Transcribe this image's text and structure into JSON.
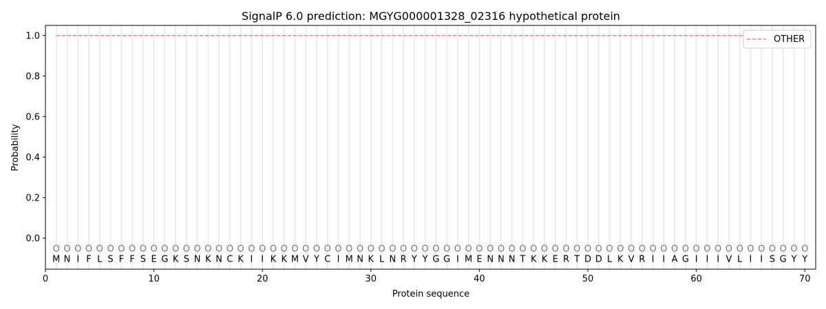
{
  "chart_data": {
    "type": "line",
    "title": "SignalP 6.0 prediction: MGYG000001328_02316 hypothetical protein",
    "xlabel": "Protein sequence",
    "ylabel": "Probability",
    "xlim": [
      0,
      71
    ],
    "ylim": [
      -0.153,
      1.05
    ],
    "xticks": [
      0,
      10,
      20,
      30,
      40,
      50,
      60,
      70
    ],
    "yticks": [
      0.0,
      0.2,
      0.4,
      0.6,
      0.8,
      1.0
    ],
    "ytick_labels": [
      "0.0",
      "0.2",
      "0.4",
      "0.6",
      "0.8",
      "1.0"
    ],
    "grid": "vertical lines at each residue",
    "legend_placement": "top-right",
    "series": [
      {
        "name": "OTHER",
        "color": "#f08080",
        "style": "dashed",
        "x_range": [
          1,
          70
        ],
        "value": 1.0
      }
    ],
    "sequence": [
      "M",
      "N",
      "I",
      "F",
      "L",
      "S",
      "F",
      "F",
      "S",
      "E",
      "G",
      "K",
      "S",
      "N",
      "K",
      "N",
      "C",
      "K",
      "I",
      "I",
      "K",
      "K",
      "M",
      "V",
      "Y",
      "C",
      "I",
      "M",
      "N",
      "K",
      "L",
      "N",
      "R",
      "Y",
      "Y",
      "G",
      "G",
      "I",
      "M",
      "E",
      "N",
      "N",
      "N",
      "T",
      "K",
      "K",
      "E",
      "R",
      "T",
      "D",
      "D",
      "L",
      "K",
      "V",
      "R",
      "I",
      "I",
      "A",
      "G",
      "I",
      "I",
      "I",
      "V",
      "L",
      "I",
      "I",
      "S",
      "G",
      "Y",
      "Y"
    ],
    "predicted_labels": "OOOOOOOOOOOOOOOOOOOOOOOOOOOOOOOOOOOOOOOOOOOOOOOOOOOOOOOOOOOOOOOOOOOOOO"
  }
}
